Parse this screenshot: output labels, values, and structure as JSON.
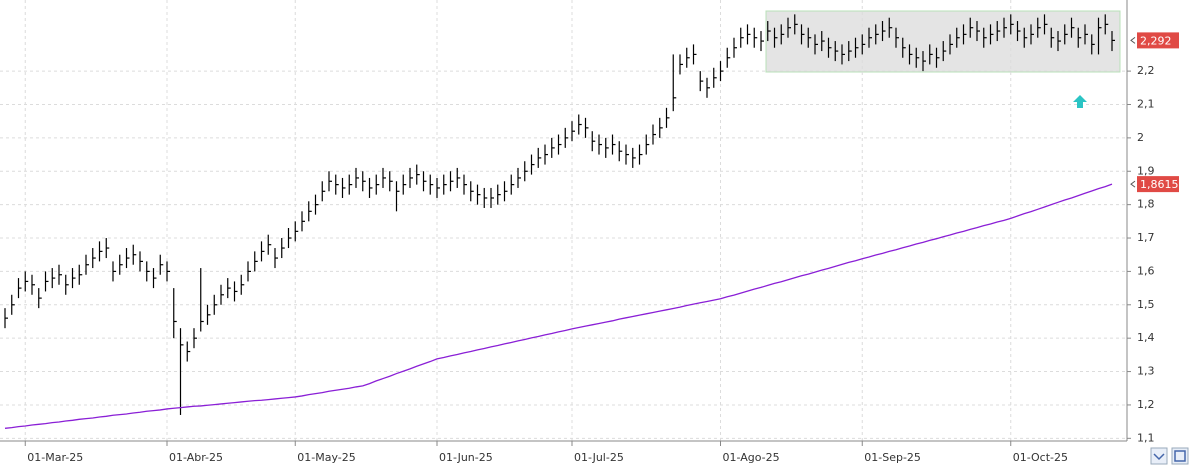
{
  "chart_data": {
    "type": "ohlc",
    "categories": [
      null,
      null,
      null,
      "01-Mar-25",
      null,
      null,
      null,
      null,
      null,
      null,
      null,
      null,
      null,
      null,
      null,
      null,
      null,
      null,
      null,
      null,
      null,
      null,
      null,
      null,
      "01-Abr-25",
      null,
      null,
      null,
      null,
      null,
      null,
      null,
      null,
      null,
      null,
      null,
      null,
      null,
      null,
      null,
      null,
      null,
      null,
      "01-May-25",
      null,
      null,
      null,
      null,
      null,
      null,
      null,
      null,
      null,
      null,
      null,
      null,
      null,
      null,
      null,
      null,
      null,
      null,
      null,
      null,
      "01-Jun-25",
      null,
      null,
      null,
      null,
      null,
      null,
      null,
      null,
      null,
      null,
      null,
      null,
      null,
      null,
      null,
      null,
      null,
      null,
      null,
      "01-Jul-25",
      null,
      null,
      null,
      null,
      null,
      null,
      null,
      null,
      null,
      null,
      null,
      null,
      null,
      null,
      null,
      null,
      null,
      null,
      null,
      null,
      null,
      "01-Ago-25",
      null,
      null,
      null,
      null,
      null,
      null,
      null,
      null,
      null,
      null,
      null,
      null,
      null,
      null,
      null,
      null,
      null,
      null,
      null,
      null,
      "01-Sep-25",
      null,
      null,
      null,
      null,
      null,
      null,
      null,
      null,
      null,
      null,
      null,
      null,
      null,
      null,
      null,
      null,
      null,
      null,
      null,
      null,
      null,
      "01-Oct-25",
      null,
      null,
      null,
      null,
      null,
      null,
      null,
      null,
      null,
      null,
      null,
      null,
      null,
      null,
      null
    ],
    "series": [
      {
        "type": "ohlc",
        "color": "#000000",
        "high": [
          1.49,
          1.53,
          1.58,
          1.6,
          1.59,
          1.55,
          1.6,
          1.61,
          1.62,
          1.59,
          1.61,
          1.62,
          1.65,
          1.67,
          1.69,
          1.7,
          1.63,
          1.65,
          1.67,
          1.68,
          1.66,
          1.63,
          1.61,
          1.65,
          1.63,
          1.55,
          1.43,
          1.39,
          1.43,
          1.61,
          1.5,
          1.53,
          1.56,
          1.58,
          1.57,
          1.59,
          1.63,
          1.66,
          1.69,
          1.71,
          1.67,
          1.7,
          1.73,
          1.75,
          1.78,
          1.81,
          1.83,
          1.87,
          1.9,
          1.89,
          1.88,
          1.89,
          1.91,
          1.9,
          1.88,
          1.89,
          1.91,
          1.9,
          1.87,
          1.89,
          1.91,
          1.92,
          1.9,
          1.89,
          1.88,
          1.89,
          1.9,
          1.91,
          1.89,
          1.87,
          1.86,
          1.85,
          1.85,
          1.86,
          1.87,
          1.89,
          1.91,
          1.93,
          1.95,
          1.97,
          1.98,
          2.0,
          2.01,
          2.03,
          2.05,
          2.07,
          2.06,
          2.02,
          2.01,
          2.0,
          2.01,
          1.99,
          1.98,
          1.97,
          1.98,
          2.01,
          2.04,
          2.06,
          2.09,
          2.25,
          2.25,
          2.27,
          2.28,
          2.2,
          2.18,
          2.21,
          2.23,
          2.27,
          2.3,
          2.33,
          2.34,
          2.33,
          2.32,
          2.35,
          2.33,
          2.34,
          2.36,
          2.37,
          2.34,
          2.33,
          2.31,
          2.32,
          2.3,
          2.29,
          2.28,
          2.29,
          2.3,
          2.31,
          2.33,
          2.34,
          2.35,
          2.36,
          2.33,
          2.3,
          2.28,
          2.27,
          2.26,
          2.28,
          2.27,
          2.29,
          2.31,
          2.33,
          2.34,
          2.36,
          2.35,
          2.33,
          2.34,
          2.35,
          2.36,
          2.37,
          2.35,
          2.33,
          2.34,
          2.36,
          2.37,
          2.33,
          2.32,
          2.34,
          2.36,
          2.33,
          2.34,
          2.31,
          2.36,
          2.37,
          2.32
        ],
        "low": [
          1.43,
          1.47,
          1.52,
          1.54,
          1.53,
          1.49,
          1.54,
          1.55,
          1.56,
          1.53,
          1.55,
          1.56,
          1.59,
          1.61,
          1.63,
          1.64,
          1.57,
          1.59,
          1.61,
          1.62,
          1.6,
          1.57,
          1.55,
          1.59,
          1.57,
          1.4,
          1.17,
          1.33,
          1.37,
          1.42,
          1.44,
          1.47,
          1.5,
          1.52,
          1.51,
          1.53,
          1.57,
          1.6,
          1.63,
          1.65,
          1.61,
          1.64,
          1.67,
          1.69,
          1.72,
          1.75,
          1.77,
          1.81,
          1.84,
          1.83,
          1.82,
          1.83,
          1.85,
          1.84,
          1.82,
          1.83,
          1.85,
          1.84,
          1.78,
          1.83,
          1.85,
          1.86,
          1.84,
          1.83,
          1.82,
          1.83,
          1.84,
          1.85,
          1.83,
          1.81,
          1.8,
          1.79,
          1.79,
          1.8,
          1.81,
          1.83,
          1.85,
          1.87,
          1.89,
          1.91,
          1.92,
          1.94,
          1.95,
          1.97,
          1.99,
          2.01,
          2.0,
          1.96,
          1.95,
          1.94,
          1.95,
          1.93,
          1.92,
          1.91,
          1.92,
          1.95,
          1.98,
          2.0,
          2.03,
          2.08,
          2.19,
          2.21,
          2.22,
          2.14,
          2.12,
          2.15,
          2.17,
          2.21,
          2.24,
          2.27,
          2.28,
          2.27,
          2.26,
          2.29,
          2.27,
          2.28,
          2.3,
          2.31,
          2.28,
          2.27,
          2.25,
          2.26,
          2.24,
          2.23,
          2.22,
          2.23,
          2.24,
          2.25,
          2.27,
          2.28,
          2.29,
          2.3,
          2.27,
          2.24,
          2.22,
          2.21,
          2.2,
          2.22,
          2.21,
          2.23,
          2.25,
          2.27,
          2.28,
          2.3,
          2.29,
          2.27,
          2.28,
          2.29,
          2.3,
          2.31,
          2.29,
          2.27,
          2.28,
          2.3,
          2.31,
          2.27,
          2.26,
          2.28,
          2.3,
          2.27,
          2.28,
          2.25,
          2.25,
          2.31,
          2.26
        ],
        "close": [
          1.46,
          1.5,
          1.55,
          1.57,
          1.56,
          1.52,
          1.57,
          1.58,
          1.59,
          1.56,
          1.58,
          1.59,
          1.62,
          1.64,
          1.66,
          1.67,
          1.6,
          1.62,
          1.64,
          1.65,
          1.63,
          1.6,
          1.58,
          1.62,
          1.6,
          1.45,
          1.38,
          1.36,
          1.4,
          1.45,
          1.47,
          1.5,
          1.53,
          1.55,
          1.54,
          1.56,
          1.6,
          1.63,
          1.66,
          1.68,
          1.64,
          1.67,
          1.7,
          1.72,
          1.75,
          1.78,
          1.8,
          1.84,
          1.87,
          1.86,
          1.85,
          1.86,
          1.88,
          1.87,
          1.85,
          1.86,
          1.88,
          1.87,
          1.84,
          1.86,
          1.88,
          1.89,
          1.87,
          1.86,
          1.85,
          1.86,
          1.87,
          1.88,
          1.86,
          1.84,
          1.83,
          1.82,
          1.82,
          1.83,
          1.84,
          1.86,
          1.88,
          1.9,
          1.92,
          1.94,
          1.95,
          1.97,
          1.98,
          2.0,
          2.02,
          2.04,
          2.03,
          1.99,
          1.98,
          1.97,
          1.98,
          1.96,
          1.95,
          1.94,
          1.95,
          1.98,
          2.01,
          2.03,
          2.06,
          2.12,
          2.22,
          2.24,
          2.25,
          2.17,
          2.15,
          2.18,
          2.2,
          2.24,
          2.27,
          2.3,
          2.31,
          2.3,
          2.29,
          2.32,
          2.3,
          2.31,
          2.33,
          2.34,
          2.31,
          2.3,
          2.28,
          2.29,
          2.27,
          2.26,
          2.25,
          2.26,
          2.27,
          2.28,
          2.3,
          2.31,
          2.32,
          2.33,
          2.3,
          2.27,
          2.25,
          2.24,
          2.23,
          2.25,
          2.24,
          2.26,
          2.28,
          2.3,
          2.31,
          2.33,
          2.32,
          2.3,
          2.31,
          2.32,
          2.33,
          2.34,
          2.32,
          2.3,
          2.31,
          2.33,
          2.34,
          2.3,
          2.29,
          2.31,
          2.33,
          2.3,
          2.31,
          2.28,
          2.33,
          2.34,
          2.292
        ],
        "value_labels": [
          null,
          null,
          null,
          null,
          null,
          null,
          null,
          null,
          null,
          null,
          null,
          null,
          null,
          null,
          null,
          null,
          null,
          null,
          null,
          null,
          null,
          null,
          null,
          null,
          null,
          null,
          null,
          null,
          null,
          null,
          null,
          null,
          null,
          null,
          null,
          null,
          null,
          null,
          null,
          null,
          null,
          null,
          null,
          null,
          null,
          null,
          null,
          null,
          null,
          null,
          null,
          null,
          null,
          null,
          null,
          null,
          null,
          null,
          null,
          null,
          null,
          null,
          null,
          null,
          null,
          null,
          null,
          null,
          null,
          null,
          null,
          null,
          null,
          null,
          null,
          null,
          null,
          null,
          null,
          null,
          null,
          null,
          null,
          null,
          null,
          null,
          null,
          null,
          null,
          null,
          null,
          null,
          null,
          null,
          null,
          null,
          null,
          null,
          null,
          null,
          null,
          null,
          null,
          null,
          null,
          null,
          null,
          null,
          null,
          null,
          null,
          null,
          null,
          null,
          null,
          null,
          null,
          null,
          null,
          null,
          null,
          null,
          null,
          null,
          null,
          null,
          null,
          null,
          null,
          null,
          null,
          null,
          null,
          null,
          null,
          null,
          null,
          null,
          null,
          null,
          null,
          null,
          null,
          null,
          null,
          null,
          null,
          null,
          null,
          null,
          null,
          null,
          null,
          null,
          null,
          null,
          null,
          null,
          null,
          null,
          null,
          null,
          null,
          null,
          "2,292"
        ],
        "tag_color": "#e04a45"
      },
      {
        "type": "line",
        "color": "#8a1fd6",
        "values": [
          1.13,
          1.132,
          1.135,
          1.137,
          1.14,
          1.142,
          1.144,
          1.147,
          1.149,
          1.152,
          1.154,
          1.157,
          1.159,
          1.161,
          1.164,
          1.166,
          1.169,
          1.171,
          1.173,
          1.176,
          1.178,
          1.181,
          1.183,
          1.185,
          1.188,
          1.19,
          1.192,
          1.194,
          1.196,
          1.197,
          1.199,
          1.201,
          1.203,
          1.205,
          1.207,
          1.209,
          1.211,
          1.213,
          1.214,
          1.216,
          1.218,
          1.22,
          1.222,
          1.224,
          1.227,
          1.231,
          1.234,
          1.237,
          1.241,
          1.244,
          1.247,
          1.25,
          1.254,
          1.257,
          1.264,
          1.272,
          1.279,
          1.286,
          1.294,
          1.301,
          1.308,
          1.316,
          1.323,
          1.33,
          1.338,
          1.342,
          1.347,
          1.351,
          1.356,
          1.36,
          1.365,
          1.369,
          1.374,
          1.378,
          1.383,
          1.387,
          1.392,
          1.396,
          1.401,
          1.405,
          1.41,
          1.414,
          1.419,
          1.423,
          1.428,
          1.432,
          1.436,
          1.44,
          1.444,
          1.448,
          1.452,
          1.457,
          1.461,
          1.465,
          1.469,
          1.473,
          1.477,
          1.481,
          1.485,
          1.489,
          1.493,
          1.498,
          1.502,
          1.506,
          1.51,
          1.514,
          1.518,
          1.524,
          1.529,
          1.535,
          1.541,
          1.547,
          1.552,
          1.558,
          1.564,
          1.569,
          1.575,
          1.581,
          1.587,
          1.592,
          1.598,
          1.604,
          1.609,
          1.615,
          1.621,
          1.627,
          1.632,
          1.638,
          1.643,
          1.649,
          1.654,
          1.66,
          1.665,
          1.671,
          1.676,
          1.682,
          1.687,
          1.693,
          1.698,
          1.704,
          1.709,
          1.715,
          1.72,
          1.726,
          1.731,
          1.737,
          1.742,
          1.748,
          1.753,
          1.759,
          1.766,
          1.773,
          1.779,
          1.786,
          1.793,
          1.8,
          1.807,
          1.814,
          1.82,
          1.827,
          1.834,
          1.841,
          1.848,
          1.854,
          1.8615
        ],
        "value_labels": [
          null,
          null,
          null,
          null,
          null,
          null,
          null,
          null,
          null,
          null,
          null,
          null,
          null,
          null,
          null,
          null,
          null,
          null,
          null,
          null,
          null,
          null,
          null,
          null,
          null,
          null,
          null,
          null,
          null,
          null,
          null,
          null,
          null,
          null,
          null,
          null,
          null,
          null,
          null,
          null,
          null,
          null,
          null,
          null,
          null,
          null,
          null,
          null,
          null,
          null,
          null,
          null,
          null,
          null,
          null,
          null,
          null,
          null,
          null,
          null,
          null,
          null,
          null,
          null,
          null,
          null,
          null,
          null,
          null,
          null,
          null,
          null,
          null,
          null,
          null,
          null,
          null,
          null,
          null,
          null,
          null,
          null,
          null,
          null,
          null,
          null,
          null,
          null,
          null,
          null,
          null,
          null,
          null,
          null,
          null,
          null,
          null,
          null,
          null,
          null,
          null,
          null,
          null,
          null,
          null,
          null,
          null,
          null,
          null,
          null,
          null,
          null,
          null,
          null,
          null,
          null,
          null,
          null,
          null,
          null,
          null,
          null,
          null,
          null,
          null,
          null,
          null,
          null,
          null,
          null,
          null,
          null,
          null,
          null,
          null,
          null,
          null,
          null,
          null,
          null,
          null,
          null,
          null,
          null,
          null,
          null,
          null,
          null,
          null,
          null,
          null,
          null,
          null,
          null,
          null,
          null,
          null,
          null,
          null,
          null,
          null,
          null,
          null,
          null,
          "1,8615"
        ],
        "tag_color": "#e04a45"
      }
    ],
    "ylim": [
      1.092,
      2.413
    ],
    "yticks": [
      {
        "value": 1.1,
        "label": "1,1"
      },
      {
        "value": 1.2,
        "label": "1,2"
      },
      {
        "value": 1.3,
        "label": "1,3"
      },
      {
        "value": 1.4,
        "label": "1,4"
      },
      {
        "value": 1.5,
        "label": "1,5"
      },
      {
        "value": 1.6,
        "label": "1,6"
      },
      {
        "value": 1.7,
        "label": "1,7"
      },
      {
        "value": 1.8,
        "label": "1,8"
      },
      {
        "value": 1.9,
        "label": "1,9"
      },
      {
        "value": 2,
        "label": "2"
      },
      {
        "value": 2.1,
        "label": "2,1"
      },
      {
        "value": 2.2,
        "label": "2,2"
      }
    ],
    "grid": true
  }
}
